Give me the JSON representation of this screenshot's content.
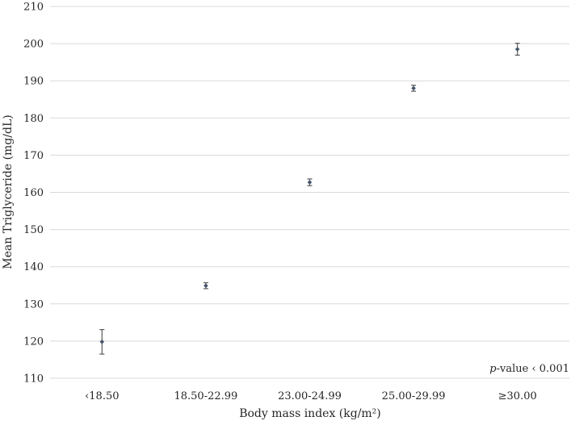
{
  "chart_data": {
    "type": "scatter",
    "title": "",
    "xlabel": "Body mass index (kg/m²)",
    "ylabel": "Mean Triglyceride (mg/dL)",
    "ylim": [
      110,
      210
    ],
    "yticks": [
      110,
      120,
      130,
      140,
      150,
      160,
      170,
      180,
      190,
      200,
      210
    ],
    "grid": true,
    "categories": [
      "‹18.50",
      "18.50-22.99",
      "23.00-24.99",
      "25.00-29.99",
      "≥30.00"
    ],
    "values": [
      119.8,
      134.9,
      162.7,
      188.0,
      198.5
    ],
    "error_low": [
      116.5,
      134.1,
      161.8,
      187.2,
      196.9
    ],
    "error_high": [
      123.1,
      135.7,
      163.6,
      188.8,
      200.1
    ],
    "annotation": {
      "italic": "p",
      "rest": "-value ‹ 0.001"
    },
    "colors": {
      "point": "#44546a",
      "errorbar": "#595959",
      "grid": "#d9d9d9"
    }
  }
}
